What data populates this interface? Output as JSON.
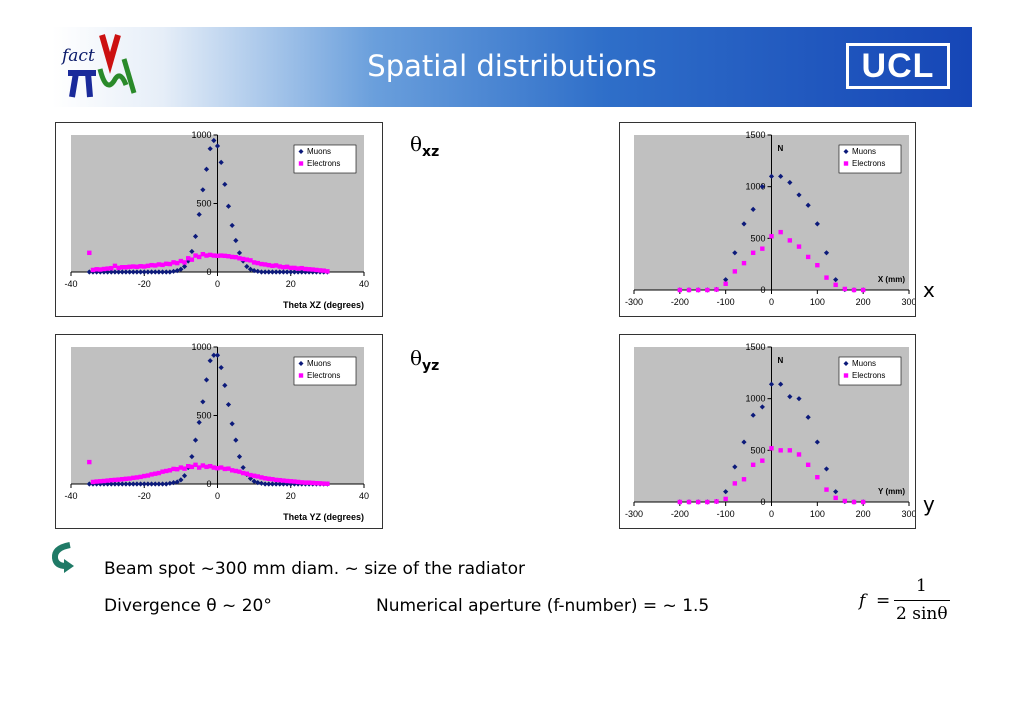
{
  "header": {
    "title": "Spatial distributions",
    "ucl_logo": "UCL"
  },
  "labels": {
    "theta_xz": {
      "symbol": "θ",
      "sub": "xz"
    },
    "theta_yz": {
      "symbol": "θ",
      "sub": "yz"
    },
    "x": "x",
    "y": "y"
  },
  "text": {
    "beam_spot": "Beam spot ~300 mm diam. ~ size of the radiator",
    "divergence": "Divergence  θ ~ 20°",
    "aperture": "Numerical aperture  (f-number)  = ~ 1.5"
  },
  "formula": {
    "lhs": "f",
    "eq": "=",
    "num": "1",
    "den": "2 sinθ"
  },
  "colors": {
    "muons": "#0c1a7a",
    "electrons": "#ff00ff",
    "plot_bg": "#c0c0c0",
    "header_dark": "#1646b6"
  },
  "chart_data": [
    {
      "type": "scatter",
      "xlabel": "Theta XZ (degrees)",
      "ylabel": "",
      "xlim": [
        -40,
        40
      ],
      "ylim": [
        0,
        1000
      ],
      "xticks": [
        -40,
        -20,
        0,
        20,
        40
      ],
      "yticks": [
        0,
        500,
        1000
      ],
      "legend_position": "top-right",
      "series": [
        {
          "name": "Muons",
          "marker": "diamond",
          "x": [
            -35,
            -34,
            -33,
            -32,
            -31,
            -30,
            -29,
            -28,
            -27,
            -26,
            -25,
            -24,
            -23,
            -22,
            -21,
            -20,
            -19,
            -18,
            -17,
            -16,
            -15,
            -14,
            -13,
            -12,
            -11,
            -10,
            -9,
            -8,
            -7,
            -6,
            -5,
            -4,
            -3,
            -2,
            -1,
            0,
            1,
            2,
            3,
            4,
            5,
            6,
            7,
            8,
            9,
            10,
            11,
            12,
            13,
            14,
            15,
            16,
            17,
            18,
            19,
            20,
            21,
            22,
            23,
            24,
            25,
            26,
            27,
            28,
            29,
            30
          ],
          "y": [
            0,
            0,
            0,
            0,
            0,
            0,
            0,
            0,
            0,
            0,
            0,
            0,
            0,
            0,
            0,
            0,
            0,
            0,
            0,
            0,
            0,
            0,
            0,
            5,
            10,
            20,
            40,
            80,
            150,
            260,
            420,
            600,
            750,
            900,
            960,
            920,
            800,
            640,
            480,
            340,
            230,
            140,
            80,
            40,
            20,
            10,
            5,
            0,
            0,
            0,
            0,
            0,
            0,
            0,
            0,
            0,
            0,
            0,
            0,
            0,
            0,
            0,
            0,
            0,
            0,
            0
          ]
        },
        {
          "name": "Electrons",
          "marker": "square",
          "x": [
            -35,
            -34,
            -33,
            -32,
            -31,
            -30,
            -29,
            -28,
            -27,
            -26,
            -25,
            -24,
            -23,
            -22,
            -21,
            -20,
            -19,
            -18,
            -17,
            -16,
            -15,
            -14,
            -13,
            -12,
            -11,
            -10,
            -9,
            -8,
            -7,
            -6,
            -5,
            -4,
            -3,
            -2,
            -1,
            0,
            1,
            2,
            3,
            4,
            5,
            6,
            7,
            8,
            9,
            10,
            11,
            12,
            13,
            14,
            15,
            16,
            17,
            18,
            19,
            20,
            21,
            22,
            23,
            24,
            25,
            26,
            27,
            28,
            29,
            30
          ],
          "y": [
            140,
            15,
            20,
            18,
            22,
            25,
            28,
            45,
            30,
            35,
            35,
            38,
            40,
            38,
            42,
            40,
            45,
            50,
            48,
            55,
            52,
            60,
            58,
            70,
            65,
            80,
            70,
            100,
            90,
            120,
            110,
            130,
            120,
            125,
            120,
            118,
            120,
            118,
            115,
            110,
            108,
            100,
            95,
            90,
            85,
            70,
            65,
            58,
            55,
            50,
            45,
            48,
            40,
            35,
            38,
            30,
            30,
            25,
            28,
            22,
            20,
            18,
            15,
            12,
            10,
            5
          ]
        }
      ]
    },
    {
      "type": "scatter",
      "xlabel": "",
      "xlabel_inside": "X (mm)",
      "ylabel": "N",
      "xlim": [
        -300,
        300
      ],
      "ylim": [
        0,
        1500
      ],
      "xticks": [
        -300,
        -200,
        -100,
        0,
        100,
        200,
        300
      ],
      "yticks": [
        0,
        500,
        1000,
        1500
      ],
      "legend_position": "top-right",
      "series": [
        {
          "name": "Muons",
          "marker": "diamond",
          "x": [
            -200,
            -180,
            -160,
            -140,
            -120,
            -100,
            -80,
            -60,
            -40,
            -20,
            0,
            20,
            40,
            60,
            80,
            100,
            120,
            140,
            160,
            180,
            200
          ],
          "y": [
            0,
            0,
            0,
            0,
            5,
            100,
            360,
            640,
            780,
            1000,
            1100,
            1100,
            1040,
            920,
            820,
            640,
            360,
            100,
            5,
            0,
            0
          ]
        },
        {
          "name": "Electrons",
          "marker": "square",
          "x": [
            -200,
            -180,
            -160,
            -140,
            -120,
            -100,
            -80,
            -60,
            -40,
            -20,
            0,
            20,
            40,
            60,
            80,
            100,
            120,
            140,
            160,
            180,
            200
          ],
          "y": [
            0,
            0,
            0,
            0,
            5,
            60,
            180,
            260,
            360,
            400,
            520,
            560,
            480,
            420,
            320,
            240,
            120,
            50,
            10,
            0,
            0
          ]
        }
      ]
    },
    {
      "type": "scatter",
      "xlabel": "Theta YZ (degrees)",
      "ylabel": "",
      "xlim": [
        -40,
        40
      ],
      "ylim": [
        0,
        1000
      ],
      "xticks": [
        -40,
        -20,
        0,
        20,
        40
      ],
      "yticks": [
        0,
        500,
        1000
      ],
      "legend_position": "top-right",
      "series": [
        {
          "name": "Muons",
          "marker": "diamond",
          "x": [
            -35,
            -34,
            -33,
            -32,
            -31,
            -30,
            -29,
            -28,
            -27,
            -26,
            -25,
            -24,
            -23,
            -22,
            -21,
            -20,
            -19,
            -18,
            -17,
            -16,
            -15,
            -14,
            -13,
            -12,
            -11,
            -10,
            -9,
            -8,
            -7,
            -6,
            -5,
            -4,
            -3,
            -2,
            -1,
            0,
            1,
            2,
            3,
            4,
            5,
            6,
            7,
            8,
            9,
            10,
            11,
            12,
            13,
            14,
            15,
            16,
            17,
            18,
            19,
            20,
            21,
            22,
            23,
            24,
            25,
            26,
            27,
            28,
            29,
            30
          ],
          "y": [
            0,
            0,
            0,
            0,
            0,
            0,
            0,
            0,
            0,
            0,
            0,
            0,
            0,
            0,
            0,
            0,
            0,
            0,
            0,
            0,
            0,
            0,
            5,
            10,
            15,
            30,
            60,
            120,
            200,
            320,
            450,
            600,
            760,
            900,
            940,
            940,
            850,
            720,
            580,
            440,
            320,
            200,
            120,
            70,
            40,
            20,
            10,
            5,
            0,
            0,
            0,
            0,
            0,
            0,
            0,
            0,
            0,
            0,
            0,
            0,
            0,
            0,
            0,
            0,
            0,
            0
          ]
        },
        {
          "name": "Electrons",
          "marker": "square",
          "x": [
            -35,
            -34,
            -33,
            -32,
            -31,
            -30,
            -29,
            -28,
            -27,
            -26,
            -25,
            -24,
            -23,
            -22,
            -21,
            -20,
            -19,
            -18,
            -17,
            -16,
            -15,
            -14,
            -13,
            -12,
            -11,
            -10,
            -9,
            -8,
            -7,
            -6,
            -5,
            -4,
            -3,
            -2,
            -1,
            0,
            1,
            2,
            3,
            4,
            5,
            6,
            7,
            8,
            9,
            10,
            11,
            12,
            13,
            14,
            15,
            16,
            17,
            18,
            19,
            20,
            21,
            22,
            23,
            24,
            25,
            26,
            27,
            28,
            29,
            30
          ],
          "y": [
            160,
            15,
            18,
            20,
            22,
            25,
            28,
            30,
            32,
            35,
            38,
            40,
            45,
            48,
            52,
            58,
            62,
            70,
            75,
            80,
            90,
            95,
            100,
            110,
            108,
            120,
            112,
            130,
            125,
            140,
            120,
            135,
            125,
            130,
            120,
            115,
            120,
            110,
            112,
            100,
            95,
            90,
            80,
            75,
            65,
            60,
            55,
            48,
            42,
            38,
            35,
            30,
            28,
            25,
            22,
            20,
            18,
            15,
            12,
            10,
            10,
            8,
            6,
            5,
            3,
            2
          ]
        }
      ]
    },
    {
      "type": "scatter",
      "xlabel": "",
      "xlabel_inside": "Y (mm)",
      "ylabel": "N",
      "xlim": [
        -300,
        300
      ],
      "ylim": [
        0,
        1500
      ],
      "xticks": [
        -300,
        -200,
        -100,
        0,
        100,
        200,
        300
      ],
      "yticks": [
        0,
        500,
        1000,
        1500
      ],
      "legend_position": "top-right",
      "series": [
        {
          "name": "Muons",
          "marker": "diamond",
          "x": [
            -200,
            -180,
            -160,
            -140,
            -120,
            -100,
            -80,
            -60,
            -40,
            -20,
            0,
            20,
            40,
            60,
            80,
            100,
            120,
            140,
            160,
            180,
            200
          ],
          "y": [
            0,
            0,
            0,
            0,
            5,
            100,
            340,
            580,
            840,
            920,
            1140,
            1140,
            1020,
            1000,
            820,
            580,
            320,
            100,
            5,
            0,
            0
          ]
        },
        {
          "name": "Electrons",
          "marker": "square",
          "x": [
            -200,
            -180,
            -160,
            -140,
            -120,
            -100,
            -80,
            -60,
            -40,
            -20,
            0,
            20,
            40,
            60,
            80,
            100,
            120,
            140,
            160,
            180,
            200
          ],
          "y": [
            0,
            0,
            0,
            0,
            5,
            30,
            180,
            220,
            360,
            400,
            520,
            500,
            500,
            460,
            360,
            240,
            120,
            40,
            10,
            0,
            0
          ]
        }
      ]
    }
  ]
}
